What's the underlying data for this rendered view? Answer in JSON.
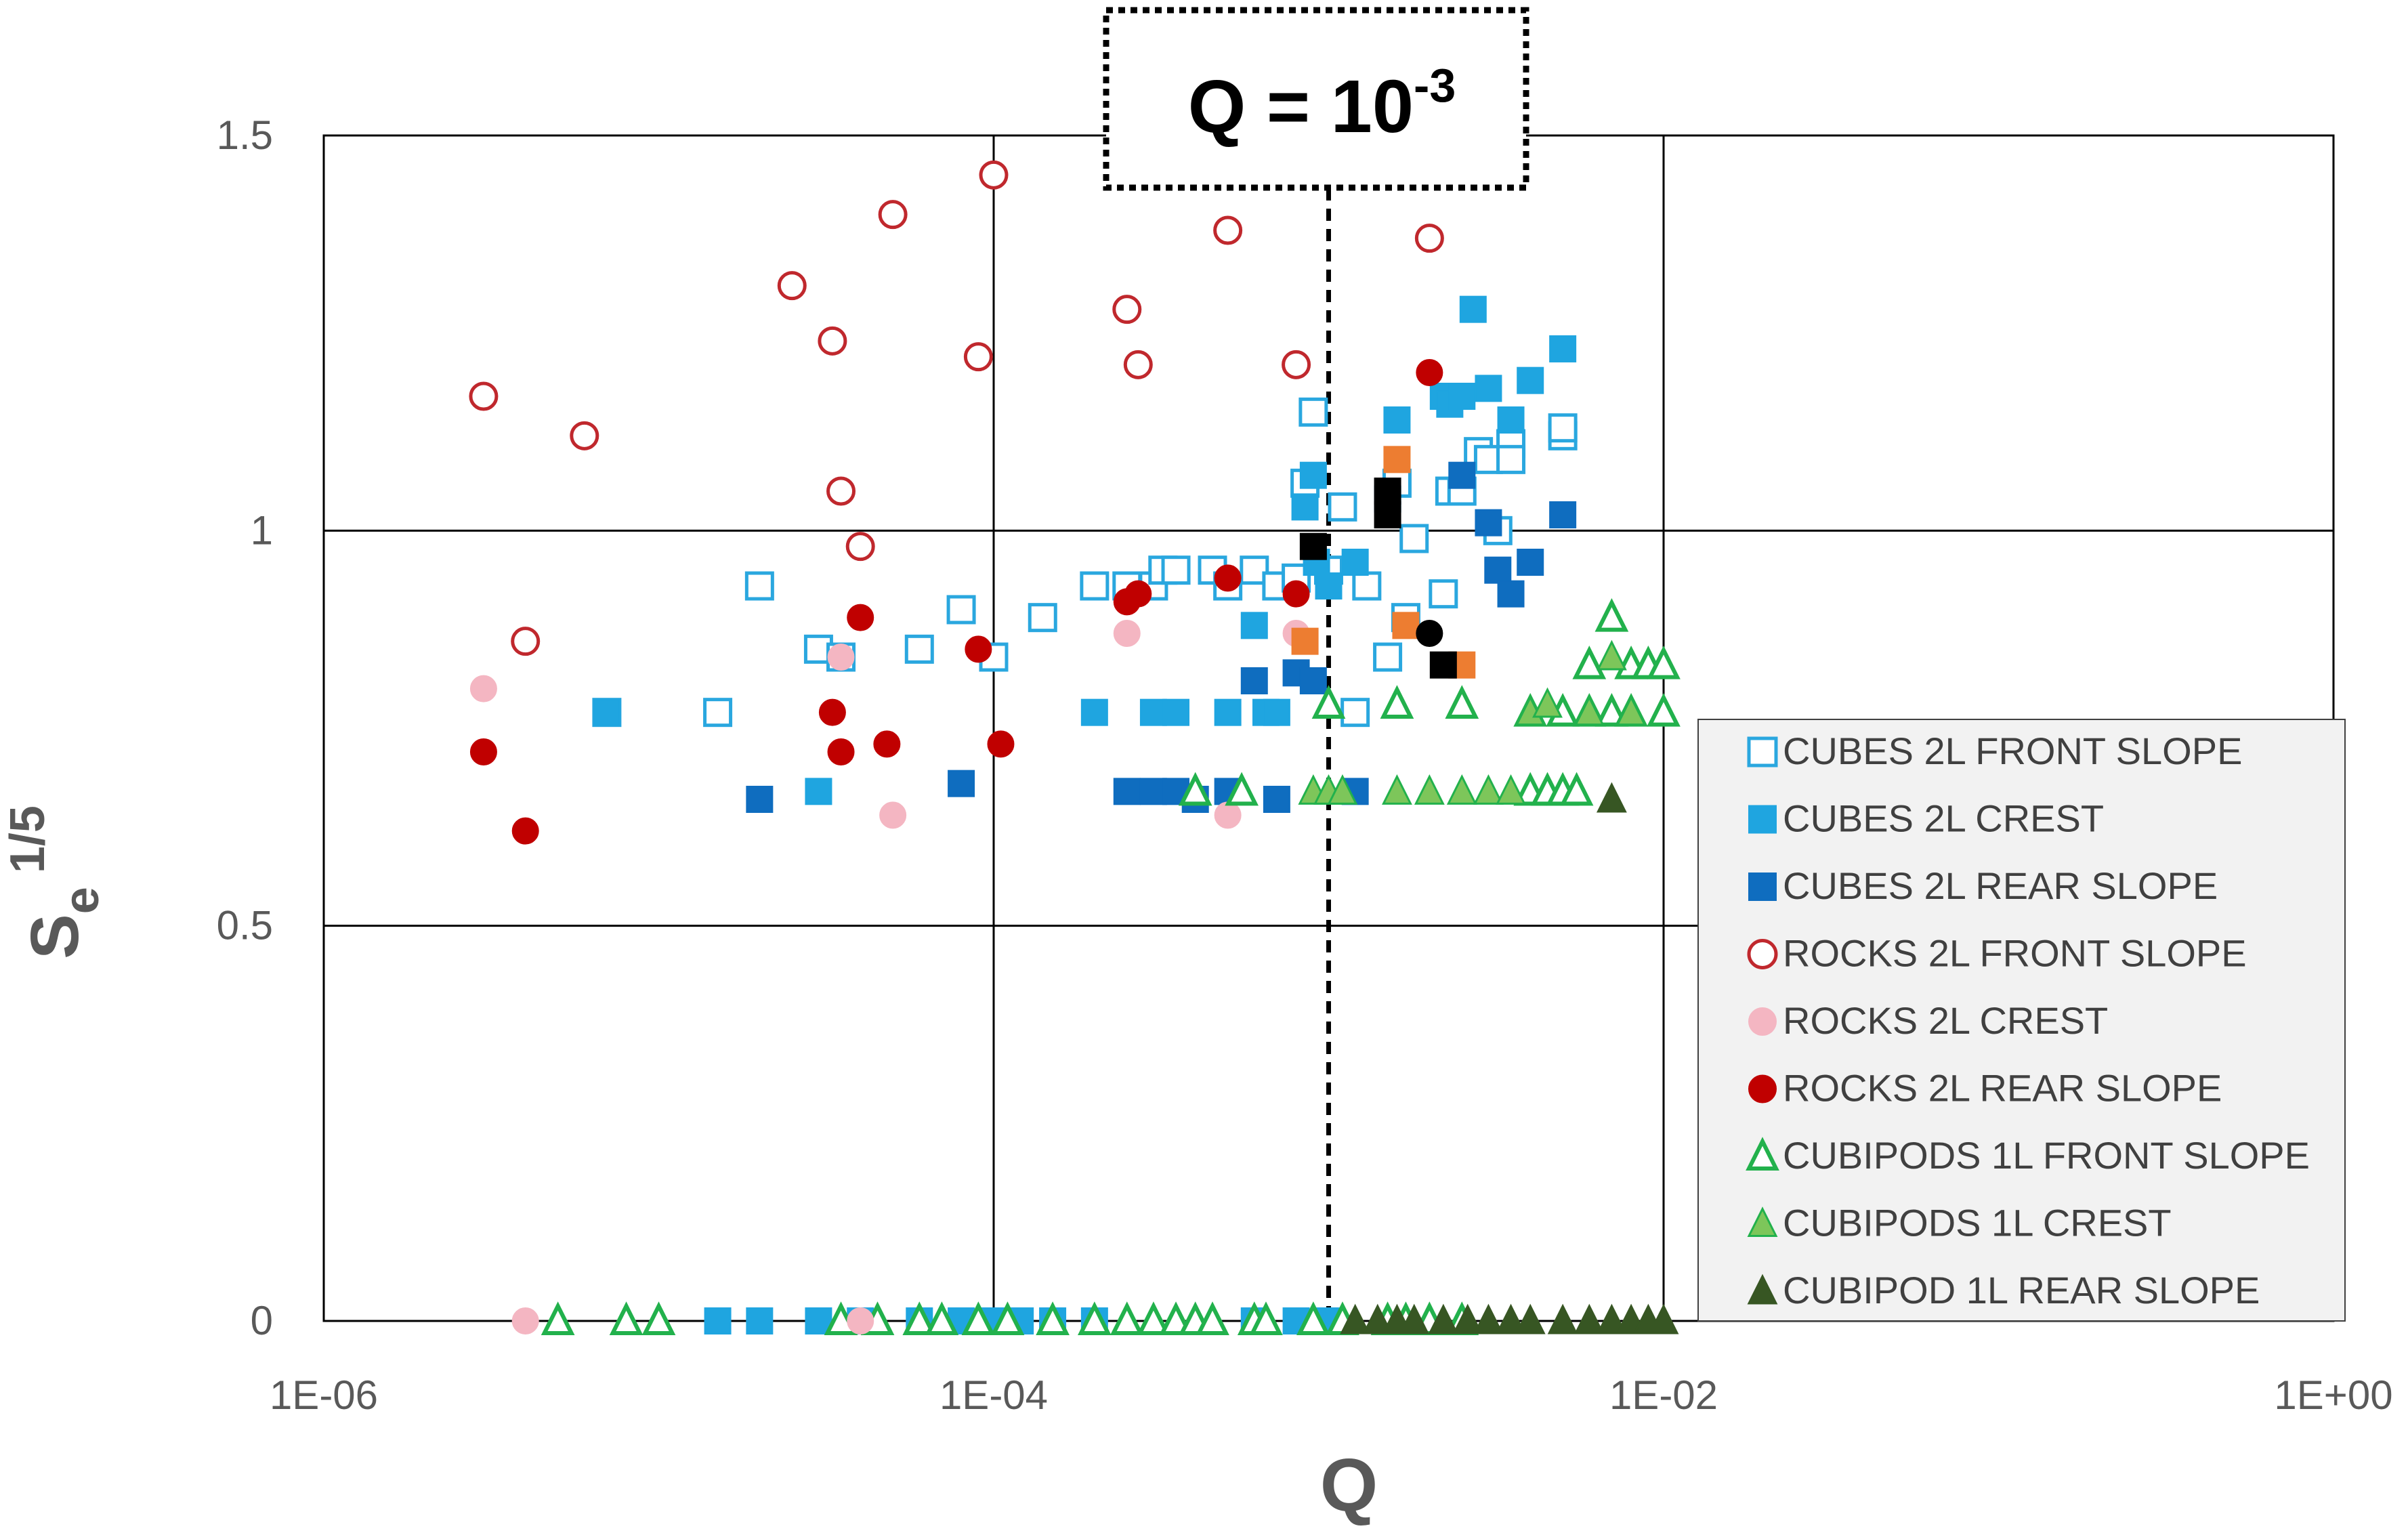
{
  "chart_data": {
    "type": "scatter",
    "title": "",
    "xlabel": "Q",
    "ylabel": "Se",
    "ylabel_sup": "1/5",
    "x_scale": "log",
    "xlim": [
      1e-06,
      1
    ],
    "ylim": [
      0,
      1.5
    ],
    "x_ticks": [
      1e-06,
      0.0001,
      0.01,
      1
    ],
    "x_tick_labels": [
      "1E-06",
      "1E-04",
      "1E-02",
      "1E+00"
    ],
    "y_ticks": [
      0,
      0.5,
      1,
      1.5
    ],
    "y_tick_labels": [
      "0",
      "0.5",
      "1",
      "1.5"
    ],
    "grid": true,
    "legend_position": "right",
    "annotation": {
      "text": "Q = 10",
      "sup": "-3",
      "x": 0.001,
      "style": "dashed vertical line with dotted box"
    },
    "series": [
      {
        "name": "CUBES 2L FRONT SLOPE",
        "marker": "square-open",
        "color": "#2aa7df",
        "points": [
          [
            7e-06,
            0.77
          ],
          [
            1.5e-05,
            0.77
          ],
          [
            2e-05,
            0.93
          ],
          [
            3e-05,
            0.85
          ],
          [
            3.5e-05,
            0.84
          ],
          [
            6e-05,
            0.85
          ],
          [
            8e-05,
            0.9
          ],
          [
            0.0001,
            0.84
          ],
          [
            0.00014,
            0.89
          ],
          [
            0.0002,
            0.93
          ],
          [
            0.00025,
            0.93
          ],
          [
            0.0003,
            0.93
          ],
          [
            0.00032,
            0.95
          ],
          [
            0.00035,
            0.95
          ],
          [
            0.00045,
            0.95
          ],
          [
            0.0005,
            0.93
          ],
          [
            0.0006,
            0.95
          ],
          [
            0.0007,
            0.93
          ],
          [
            0.0008,
            0.94
          ],
          [
            0.00085,
            1.06
          ],
          [
            0.0009,
            1.15
          ],
          [
            0.001,
            0.95
          ],
          [
            0.0011,
            1.03
          ],
          [
            0.0012,
            0.77
          ],
          [
            0.0013,
            0.93
          ],
          [
            0.0015,
            0.84
          ],
          [
            0.0016,
            1.06
          ],
          [
            0.0017,
            0.89
          ],
          [
            0.0018,
            0.99
          ],
          [
            0.0022,
            0.92
          ],
          [
            0.0023,
            1.05
          ],
          [
            0.0025,
            1.05
          ],
          [
            0.0028,
            1.1
          ],
          [
            0.003,
            1.09
          ],
          [
            0.0032,
            1.0
          ],
          [
            0.0035,
            1.11
          ],
          [
            0.005,
            1.12
          ],
          [
            0.005,
            1.13
          ],
          [
            0.0035,
            1.09
          ]
        ]
      },
      {
        "name": "CUBES 2L CREST",
        "marker": "square-filled",
        "color": "#1fa5e0",
        "points": [
          [
            7e-06,
            0.77
          ],
          [
            3e-05,
            0.67
          ],
          [
            0.0002,
            0.77
          ],
          [
            0.0003,
            0.77
          ],
          [
            0.00035,
            0.77
          ],
          [
            0.0005,
            0.77
          ],
          [
            0.0006,
            0.88
          ],
          [
            0.00065,
            0.77
          ],
          [
            0.0007,
            0.77
          ],
          [
            0.00085,
            1.03
          ],
          [
            0.0009,
            1.07
          ],
          [
            0.00092,
            0.96
          ],
          [
            0.001,
            0.93
          ],
          [
            0.0012,
            0.96
          ],
          [
            0.0015,
            1.04
          ],
          [
            0.0016,
            1.14
          ],
          [
            0.0022,
            1.17
          ],
          [
            0.0023,
            1.16
          ],
          [
            0.0025,
            1.17
          ],
          [
            0.0027,
            1.28
          ],
          [
            0.003,
            1.18
          ],
          [
            0.0035,
            1.14
          ],
          [
            0.004,
            1.19
          ],
          [
            0.005,
            1.23
          ]
        ]
      },
      {
        "name": "CUBES 2L REAR SLOPE",
        "marker": "square-filled",
        "color": "#0f6dbf",
        "points": [
          [
            2e-05,
            0.66
          ],
          [
            8e-05,
            0.68
          ],
          [
            0.00025,
            0.67
          ],
          [
            0.0003,
            0.67
          ],
          [
            0.00035,
            0.67
          ],
          [
            0.0004,
            0.66
          ],
          [
            0.0005,
            0.67
          ],
          [
            0.0006,
            0.81
          ],
          [
            0.0007,
            0.66
          ],
          [
            0.0008,
            0.82
          ],
          [
            0.0009,
            0.81
          ],
          [
            0.0012,
            0.67
          ],
          [
            0.0015,
            1.04
          ],
          [
            0.0025,
            1.07
          ],
          [
            0.003,
            1.01
          ],
          [
            0.0032,
            0.95
          ],
          [
            0.0035,
            0.92
          ],
          [
            0.004,
            0.96
          ],
          [
            0.005,
            1.02
          ]
        ]
      },
      {
        "name": "ROCKS 2L FRONT SLOPE",
        "marker": "circle-open",
        "color": "#c0282d",
        "points": [
          [
            3e-06,
            1.17
          ],
          [
            4e-06,
            0.86
          ],
          [
            6e-06,
            1.12
          ],
          [
            2.5e-05,
            1.31
          ],
          [
            3.3e-05,
            1.24
          ],
          [
            3.5e-05,
            1.05
          ],
          [
            4e-05,
            0.98
          ],
          [
            5e-05,
            1.4
          ],
          [
            9e-05,
            1.22
          ],
          [
            0.0001,
            1.45
          ],
          [
            0.00025,
            1.28
          ],
          [
            0.00027,
            1.21
          ],
          [
            0.0005,
            1.38
          ],
          [
            0.0008,
            1.21
          ],
          [
            0.002,
            1.37
          ]
        ]
      },
      {
        "name": "ROCKS 2L CREST",
        "marker": "circle-filled",
        "color": "#f4b6c2",
        "points": [
          [
            3e-06,
            0.8
          ],
          [
            4e-06,
            0.0
          ],
          [
            3.5e-05,
            0.84
          ],
          [
            5e-05,
            0.64
          ],
          [
            4e-05,
            0.0
          ],
          [
            0.00025,
            0.87
          ],
          [
            0.0005,
            0.64
          ],
          [
            0.0008,
            0.87
          ]
        ]
      },
      {
        "name": "ROCKS 2L REAR SLOPE",
        "marker": "circle-filled",
        "color": "#c00000",
        "points": [
          [
            3e-06,
            0.72
          ],
          [
            4e-06,
            0.62
          ],
          [
            3.5e-05,
            0.72
          ],
          [
            3.3e-05,
            0.77
          ],
          [
            4e-05,
            0.89
          ],
          [
            4.8e-05,
            0.73
          ],
          [
            9e-05,
            0.85
          ],
          [
            0.000105,
            0.73
          ],
          [
            0.00025,
            0.91
          ],
          [
            0.00027,
            0.92
          ],
          [
            0.0005,
            0.94
          ],
          [
            0.0008,
            0.92
          ],
          [
            0.002,
            1.2
          ]
        ]
      },
      {
        "name": "CUBIPODS 1L FRONT SLOPE",
        "marker": "triangle-open",
        "color": "#22b14c",
        "points": [
          [
            0.0004,
            0.67
          ],
          [
            0.00055,
            0.67
          ],
          [
            0.001,
            0.78
          ],
          [
            0.0016,
            0.78
          ],
          [
            0.0025,
            0.78
          ],
          [
            0.004,
            0.77
          ],
          [
            0.005,
            0.77
          ],
          [
            0.006,
            0.83
          ],
          [
            0.007,
            0.89
          ],
          [
            0.008,
            0.83
          ],
          [
            0.009,
            0.83
          ],
          [
            0.01,
            0.83
          ],
          [
            0.006,
            0.77
          ],
          [
            0.007,
            0.77
          ],
          [
            0.008,
            0.77
          ],
          [
            0.01,
            0.77
          ],
          [
            0.004,
            0.67
          ],
          [
            0.0045,
            0.67
          ],
          [
            0.005,
            0.67
          ],
          [
            0.0055,
            0.67
          ]
        ]
      },
      {
        "name": "CUBIPODS 1L CREST",
        "marker": "triangle-filled",
        "color": "#7dc65a",
        "points": [
          [
            0.0009,
            0.67
          ],
          [
            0.001,
            0.67
          ],
          [
            0.0011,
            0.67
          ],
          [
            0.0016,
            0.67
          ],
          [
            0.002,
            0.67
          ],
          [
            0.0025,
            0.67
          ],
          [
            0.003,
            0.67
          ],
          [
            0.0035,
            0.67
          ],
          [
            0.004,
            0.77
          ],
          [
            0.0045,
            0.78
          ],
          [
            0.006,
            0.77
          ],
          [
            0.007,
            0.84
          ],
          [
            0.008,
            0.77
          ]
        ]
      },
      {
        "name": "CUBIPOD 1L REAR SLOPE",
        "marker": "triangle-filled",
        "color": "#375623",
        "points": [
          [
            0.007,
            0.66
          ],
          [
            0.005,
            0.0
          ],
          [
            0.006,
            0.0
          ],
          [
            0.007,
            0.0
          ],
          [
            0.008,
            0.0
          ],
          [
            0.009,
            0.0
          ],
          [
            0.01,
            0.0
          ],
          [
            0.004,
            0.0
          ],
          [
            0.0035,
            0.0
          ],
          [
            0.003,
            0.0
          ]
        ]
      }
    ],
    "extra_points": [
      {
        "marker": "square-filled",
        "color": "#ed7d31",
        "points": [
          [
            0.00085,
            0.86
          ],
          [
            0.0016,
            1.09
          ],
          [
            0.0017,
            0.88
          ],
          [
            0.0025,
            0.83
          ]
        ]
      },
      {
        "marker": "square-filled",
        "color": "#000000",
        "points": [
          [
            0.0009,
            0.98
          ],
          [
            0.0015,
            1.02
          ],
          [
            0.0015,
            1.05
          ],
          [
            0.0022,
            0.83
          ]
        ]
      },
      {
        "marker": "circle-filled",
        "color": "#000000",
        "points": [
          [
            0.002,
            0.87
          ]
        ]
      }
    ],
    "baseline_points": [
      {
        "marker": "square-filled",
        "color": "#1fa5e0",
        "points": [
          [
            1.5e-05,
            0.0
          ],
          [
            2e-05,
            0.0
          ],
          [
            3e-05,
            0.0
          ],
          [
            4e-05,
            0.0
          ],
          [
            6e-05,
            0.0
          ],
          [
            8e-05,
            0.0
          ],
          [
            0.0001,
            0.0
          ],
          [
            0.00012,
            0.0
          ],
          [
            0.00015,
            0.0
          ],
          [
            0.0002,
            0.0
          ],
          [
            0.0006,
            0.0
          ],
          [
            0.0008,
            0.0
          ],
          [
            0.001,
            0.0
          ]
        ]
      },
      {
        "marker": "triangle-open",
        "color": "#22b14c",
        "points": [
          [
            5e-06,
            0.0
          ],
          [
            8e-06,
            0.0
          ],
          [
            1e-05,
            0.0
          ],
          [
            3.5e-05,
            0.0
          ],
          [
            4.5e-05,
            0.0
          ],
          [
            6e-05,
            0.0
          ],
          [
            7e-05,
            0.0
          ],
          [
            9e-05,
            0.0
          ],
          [
            0.00011,
            0.0
          ],
          [
            0.00015,
            0.0
          ],
          [
            0.0002,
            0.0
          ],
          [
            0.00025,
            0.0
          ],
          [
            0.0003,
            0.0
          ],
          [
            0.00035,
            0.0
          ],
          [
            0.0004,
            0.0
          ],
          [
            0.00045,
            0.0
          ],
          [
            0.0006,
            0.0
          ],
          [
            0.00065,
            0.0
          ],
          [
            0.0009,
            0.0
          ],
          [
            0.0011,
            0.0
          ],
          [
            0.0015,
            0.0
          ],
          [
            0.0017,
            0.0
          ],
          [
            0.002,
            0.0
          ],
          [
            0.0025,
            0.0
          ]
        ]
      },
      {
        "marker": "triangle-filled",
        "color": "#375623",
        "points": [
          [
            0.0012,
            0.0
          ],
          [
            0.0014,
            0.0
          ],
          [
            0.0016,
            0.0
          ],
          [
            0.0018,
            0.0
          ],
          [
            0.0022,
            0.0
          ],
          [
            0.0026,
            0.0
          ]
        ]
      }
    ]
  }
}
